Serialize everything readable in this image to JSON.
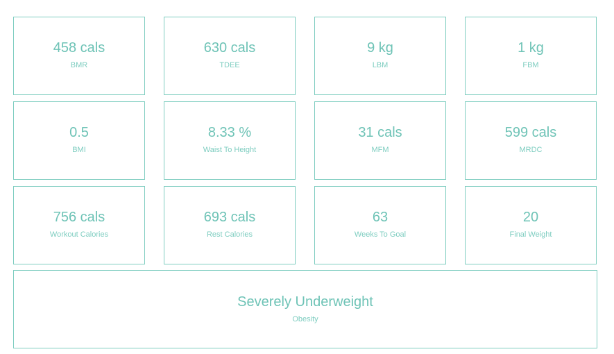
{
  "colors": {
    "accent": "#6ec3b6",
    "border": "#7ecdc0",
    "background": "#ffffff"
  },
  "stats": [
    {
      "value": "458 cals",
      "label": "BMR"
    },
    {
      "value": "630 cals",
      "label": "TDEE"
    },
    {
      "value": "9 kg",
      "label": "LBM"
    },
    {
      "value": "1 kg",
      "label": "FBM"
    },
    {
      "value": "0.5",
      "label": "BMI"
    },
    {
      "value": "8.33 %",
      "label": "Waist To Height"
    },
    {
      "value": "31 cals",
      "label": "MFM"
    },
    {
      "value": "599 cals",
      "label": "MRDC"
    },
    {
      "value": "756 cals",
      "label": "Workout Calories"
    },
    {
      "value": "693 cals",
      "label": "Rest Calories"
    },
    {
      "value": "63",
      "label": "Weeks To Goal"
    },
    {
      "value": "20",
      "label": "Final Weight"
    }
  ],
  "classification": {
    "value": "Severely Underweight",
    "label": "Obesity"
  }
}
